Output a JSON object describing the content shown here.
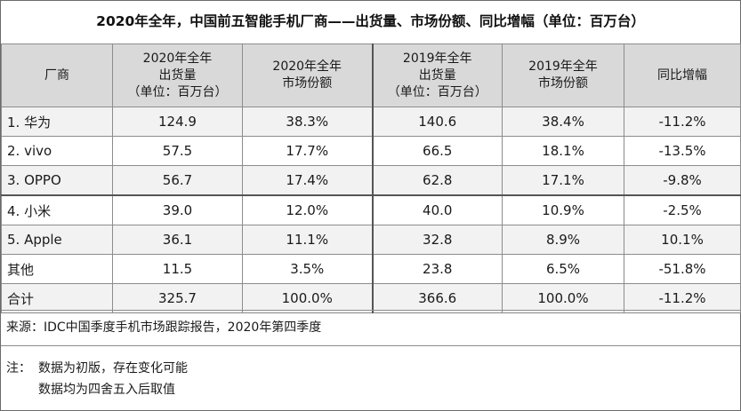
{
  "title": "2020年全年，中国前五智能手机厂商——出货量、市场份额、同比增幅（单位：百万台）",
  "columns": [
    {
      "lines": [
        "厂商"
      ]
    },
    {
      "lines": [
        "2020年全年",
        "出货量",
        "（单位：百万台）"
      ]
    },
    {
      "lines": [
        "2020年全年",
        "市场份额"
      ]
    },
    {
      "lines": [
        "2019年全年",
        "出货量",
        "（单位：百万台）"
      ]
    },
    {
      "lines": [
        "2019年全年",
        "市场份额"
      ]
    },
    {
      "lines": [
        "同比增幅"
      ]
    }
  ],
  "rows": [
    {
      "vendor": "1. 华为",
      "ship_2020": "124.9",
      "share_2020": "38.3%",
      "ship_2019": "140.6",
      "share_2019": "38.4%",
      "yoy": "-11.2%"
    },
    {
      "vendor": "2. vivo",
      "ship_2020": "57.5",
      "share_2020": "17.7%",
      "ship_2019": "66.5",
      "share_2019": "18.1%",
      "yoy": "-13.5%"
    },
    {
      "vendor": "3. OPPO",
      "ship_2020": "56.7",
      "share_2020": "17.4%",
      "ship_2019": "62.8",
      "share_2019": "17.1%",
      "yoy": "-9.8%"
    },
    {
      "vendor": "4. 小米",
      "ship_2020": "39.0",
      "share_2020": "12.0%",
      "ship_2019": "40.0",
      "share_2019": "10.9%",
      "yoy": "-2.5%"
    },
    {
      "vendor": "5. Apple",
      "ship_2020": "36.1",
      "share_2020": "11.1%",
      "ship_2019": "32.8",
      "share_2019": "8.9%",
      "yoy": "10.1%"
    },
    {
      "vendor": "其他",
      "ship_2020": "11.5",
      "share_2020": "3.5%",
      "ship_2019": "23.8",
      "share_2019": "6.5%",
      "yoy": "-51.8%"
    },
    {
      "vendor": "合计",
      "ship_2020": "325.7",
      "share_2020": "100.0%",
      "ship_2019": "366.6",
      "share_2019": "100.0%",
      "yoy": "-11.2%"
    }
  ],
  "source": "来源：IDC中国季度手机市场跟踪报告，2020年第四季度",
  "notes": {
    "prefix": "注：",
    "line1": "数据为初版，存在变化可能",
    "line2": "数据均为四舍五入后取值"
  }
}
